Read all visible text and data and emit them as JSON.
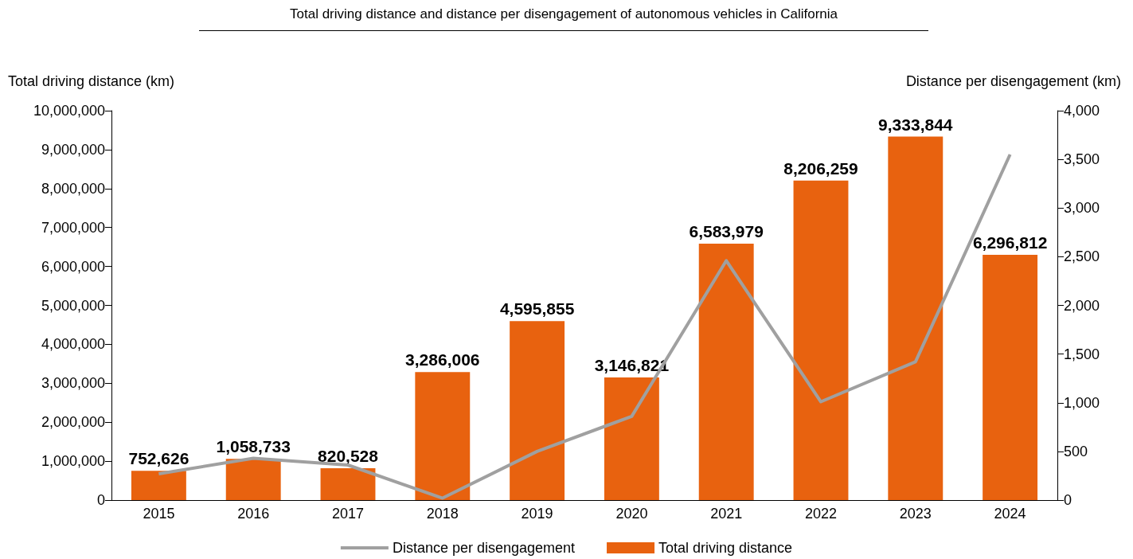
{
  "chart_data": {
    "type": "bar",
    "title": "Total driving distance and distance per disengagement of autonomous vehicles in California",
    "ylabel": "Total driving distance (km)",
    "y2label": "Distance per disengagement (km)",
    "categories": [
      "2015",
      "2016",
      "2017",
      "2018",
      "2019",
      "2020",
      "2021",
      "2022",
      "2023",
      "2024"
    ],
    "series": [
      {
        "name": "Distance per disengagement",
        "type": "line",
        "axis": "y2",
        "color": "#a0a0a0",
        "values": [
          270,
          430,
          360,
          20,
          500,
          860,
          2460,
          1010,
          1420,
          3550
        ]
      },
      {
        "name": "Total driving distance",
        "color": "#e8620f",
        "values": [
          752626,
          1058733,
          820528,
          3286006,
          4595855,
          3146821,
          6583979,
          8206259,
          9333844,
          6296812
        ],
        "value_labels": [
          "752,626",
          "1,058,733",
          "820,528",
          "3,286,006",
          "4,595,855",
          "3,146,821",
          "6,583,979",
          "8,206,259",
          "9,333,844",
          "6,296,812"
        ]
      }
    ],
    "ylim": [
      0,
      10000000
    ],
    "yticks": [
      0,
      {
        "value": 1000000,
        "label": "1,000,000"
      },
      {
        "value": 2000000,
        "label": "2,000,000"
      },
      {
        "value": 3000000,
        "label": "3,000,000"
      },
      {
        "value": 4000000,
        "label": "4,000,000"
      },
      {
        "value": 5000000,
        "label": "5,000,000"
      },
      {
        "value": 6000000,
        "label": "6,000,000"
      },
      {
        "value": 7000000,
        "label": "7,000,000"
      },
      {
        "value": 8000000,
        "label": "8,000,000"
      },
      {
        "value": 9000000,
        "label": "9,000,000"
      },
      {
        "value": 10000000,
        "label": "10,000,000"
      }
    ],
    "y2lim": [
      0,
      4000
    ],
    "y2ticks": [
      0,
      500,
      {
        "value": 1000,
        "label": "1,000"
      },
      {
        "value": 1500,
        "label": "1,500"
      },
      {
        "value": 2000,
        "label": "2,000"
      },
      {
        "value": 2500,
        "label": "2,500"
      },
      {
        "value": 3000,
        "label": "3,000"
      },
      {
        "value": 3500,
        "label": "3,500"
      },
      {
        "value": 4000,
        "label": "4,000"
      }
    ],
    "legend": "bottom",
    "grid": false,
    "marker": "none",
    "line_style": "solid"
  }
}
